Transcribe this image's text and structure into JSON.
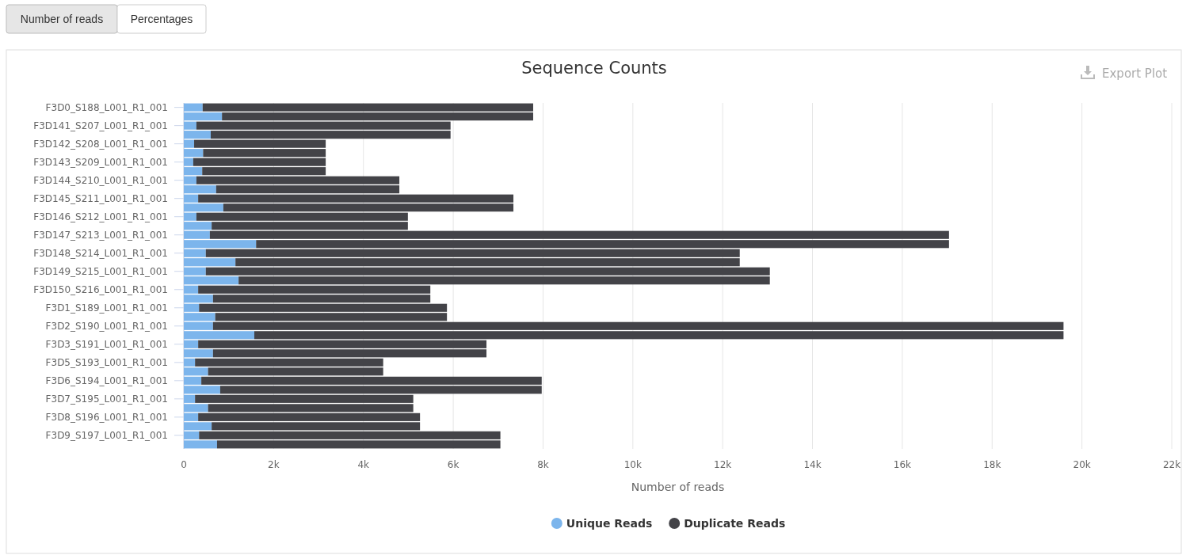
{
  "chart_data": {
    "type": "bar",
    "orientation": "horizontal",
    "stacked": true,
    "title": "Sequence Counts",
    "xlabel": "Number of reads",
    "categories": [
      "F3D0_S188_L001_R1_001",
      null,
      "F3D141_S207_L001_R1_001",
      null,
      "F3D142_S208_L001_R1_001",
      null,
      "F3D143_S209_L001_R1_001",
      null,
      "F3D144_S210_L001_R1_001",
      null,
      "F3D145_S211_L001_R1_001",
      null,
      "F3D146_S212_L001_R1_001",
      null,
      "F3D147_S213_L001_R1_001",
      null,
      "F3D148_S214_L001_R1_001",
      null,
      "F3D149_S215_L001_R1_001",
      null,
      "F3D150_S216_L001_R1_001",
      null,
      "F3D1_S189_L001_R1_001",
      null,
      "F3D2_S190_L001_R1_001",
      null,
      "F3D3_S191_L001_R1_001",
      null,
      "F3D5_S193_L001_R1_001",
      null,
      "F3D6_S194_L001_R1_001",
      null,
      "F3D7_S195_L001_R1_001",
      null,
      "F3D8_S196_L001_R1_001",
      null,
      "F3D9_S197_L001_R1_001",
      null
    ],
    "series": [
      {
        "name": "Unique Reads",
        "color": "#7cb5ec",
        "values": [
          420,
          850,
          280,
          600,
          230,
          430,
          210,
          410,
          280,
          720,
          320,
          880,
          280,
          620,
          580,
          1610,
          490,
          1150,
          490,
          1220,
          320,
          650,
          340,
          700,
          650,
          1570,
          320,
          650,
          250,
          540,
          390,
          810,
          250,
          540,
          320,
          620,
          340,
          740
        ]
      },
      {
        "name": "Duplicate Reads",
        "color": "#434348",
        "values": [
          7360,
          6930,
          5660,
          5340,
          2930,
          2730,
          2950,
          2750,
          4520,
          4080,
          7020,
          6460,
          4710,
          4370,
          16460,
          15430,
          11890,
          11230,
          12560,
          11830,
          5170,
          4840,
          5520,
          5160,
          18940,
          18020,
          6420,
          6090,
          4190,
          3900,
          7580,
          7160,
          4860,
          4570,
          4940,
          4640,
          6710,
          6310
        ]
      }
    ],
    "xlim": [
      0,
      22000
    ],
    "xticks": [
      0,
      {
        "value": 2000,
        "label": "2k"
      },
      {
        "value": 4000,
        "label": "4k"
      },
      {
        "value": 6000,
        "label": "6k"
      },
      {
        "value": 8000,
        "label": "8k"
      },
      {
        "value": 10000,
        "label": "10k"
      },
      {
        "value": 12000,
        "label": "12k"
      },
      {
        "value": 14000,
        "label": "14k"
      },
      {
        "value": 16000,
        "label": "16k"
      },
      {
        "value": 18000,
        "label": "18k"
      },
      {
        "value": 20000,
        "label": "20k"
      },
      {
        "value": 22000,
        "label": "22k"
      }
    ],
    "grid": "x",
    "legend": "bottom",
    "annotations": [
      "Number of reads",
      "Percentages",
      "Export Plot"
    ]
  }
}
